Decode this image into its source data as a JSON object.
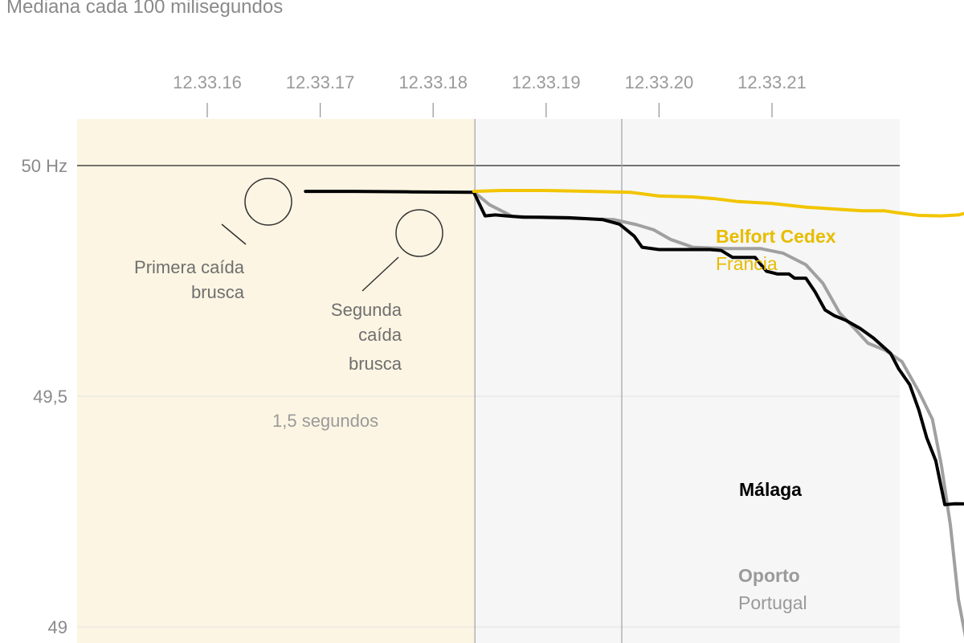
{
  "subtitle": "Mediana cada 100 milisegundos",
  "chart_data": {
    "type": "line",
    "x_ticks": [
      "12.33.16",
      "12.33.17",
      "12.33.18",
      "12.33.19",
      "12.33.20",
      "12.33.21"
    ],
    "y_ticks": [
      {
        "value": 50,
        "label": "50 Hz"
      },
      {
        "value": 49.5,
        "label": "49,5"
      },
      {
        "value": 49,
        "label": "49"
      }
    ],
    "xlim": [
      16.73,
      23.99
    ],
    "ylim": [
      48.97,
      50.1
    ],
    "shaded_region": [
      16.73,
      18.37
    ],
    "markers": [
      18.37,
      19.67
    ],
    "colors": {
      "malaga": "#000000",
      "oporto": "#a0a0a0",
      "belfort": "#f2c500",
      "shade_pre": "#fcf5e3",
      "shade_post": "#f5f6f5"
    },
    "series": [
      {
        "key": "oporto",
        "name": "Oporto",
        "sub": "Portugal",
        "values": [
          [
            18.36,
            49.943
          ],
          [
            18.5,
            49.915
          ],
          [
            18.7,
            49.89
          ],
          [
            19.0,
            49.887
          ],
          [
            19.3,
            49.885
          ],
          [
            19.6,
            49.883
          ],
          [
            19.8,
            49.872
          ],
          [
            19.95,
            49.861
          ],
          [
            20.1,
            49.84
          ],
          [
            20.3,
            49.823
          ],
          [
            20.6,
            49.82
          ],
          [
            20.9,
            49.82
          ],
          [
            21.1,
            49.81
          ],
          [
            21.3,
            49.785
          ],
          [
            21.45,
            49.745
          ],
          [
            21.6,
            49.68
          ],
          [
            21.7,
            49.655
          ],
          [
            21.85,
            49.615
          ],
          [
            22.0,
            49.6
          ],
          [
            22.15,
            49.575
          ],
          [
            22.3,
            49.51
          ],
          [
            22.42,
            49.45
          ],
          [
            22.5,
            49.35
          ],
          [
            22.58,
            49.22
          ],
          [
            22.65,
            49.06
          ],
          [
            22.72,
            48.97
          ]
        ]
      },
      {
        "key": "malaga",
        "name": "Málaga",
        "sub": "",
        "values": [
          [
            16.87,
            49.944
          ],
          [
            17.3,
            49.944
          ],
          [
            17.8,
            49.943
          ],
          [
            18.36,
            49.942
          ],
          [
            18.46,
            49.891
          ],
          [
            18.55,
            49.893
          ],
          [
            18.65,
            49.891
          ],
          [
            18.8,
            49.888
          ],
          [
            18.95,
            49.888
          ],
          [
            19.2,
            49.887
          ],
          [
            19.35,
            49.885
          ],
          [
            19.5,
            49.883
          ],
          [
            19.65,
            49.873
          ],
          [
            19.78,
            49.847
          ],
          [
            19.85,
            49.823
          ],
          [
            20.0,
            49.818
          ],
          [
            20.15,
            49.818
          ],
          [
            20.3,
            49.818
          ],
          [
            20.45,
            49.818
          ],
          [
            20.55,
            49.816
          ],
          [
            20.65,
            49.801
          ],
          [
            20.85,
            49.801
          ],
          [
            20.95,
            49.771
          ],
          [
            21.05,
            49.765
          ],
          [
            21.15,
            49.765
          ],
          [
            21.2,
            49.756
          ],
          [
            21.3,
            49.756
          ],
          [
            21.38,
            49.727
          ],
          [
            21.47,
            49.687
          ],
          [
            21.55,
            49.675
          ],
          [
            21.65,
            49.665
          ],
          [
            21.78,
            49.647
          ],
          [
            21.9,
            49.626
          ],
          [
            22.05,
            49.593
          ],
          [
            22.12,
            49.56
          ],
          [
            22.22,
            49.525
          ],
          [
            22.3,
            49.47
          ],
          [
            22.37,
            49.41
          ],
          [
            22.45,
            49.36
          ],
          [
            22.53,
            49.265
          ],
          [
            22.62,
            49.267
          ],
          [
            23.0,
            49.266
          ],
          [
            23.5,
            49.265
          ],
          [
            23.9,
            49.264
          ]
        ]
      },
      {
        "key": "belfort",
        "name": "Belfort Cedex",
        "sub": "Francia",
        "values": [
          [
            18.36,
            49.944
          ],
          [
            18.6,
            49.946
          ],
          [
            19.0,
            49.946
          ],
          [
            19.4,
            49.944
          ],
          [
            19.75,
            49.942
          ],
          [
            20.0,
            49.934
          ],
          [
            20.3,
            49.932
          ],
          [
            20.5,
            49.928
          ],
          [
            20.7,
            49.922
          ],
          [
            21.0,
            49.918
          ],
          [
            21.3,
            49.91
          ],
          [
            21.6,
            49.905
          ],
          [
            21.8,
            49.902
          ],
          [
            22.0,
            49.902
          ],
          [
            22.1,
            49.898
          ],
          [
            22.3,
            49.892
          ],
          [
            22.5,
            49.891
          ],
          [
            22.65,
            49.893
          ],
          [
            22.8,
            49.902
          ],
          [
            22.9,
            49.91
          ],
          [
            23.0,
            49.92
          ],
          [
            23.1,
            49.922
          ],
          [
            23.2,
            49.933
          ],
          [
            23.3,
            49.934
          ],
          [
            23.4,
            49.93
          ],
          [
            23.5,
            49.915
          ],
          [
            23.6,
            49.904
          ],
          [
            23.75,
            49.9
          ],
          [
            23.9,
            49.9
          ],
          [
            24.0,
            49.9
          ],
          [
            24.15,
            49.904
          ]
        ]
      }
    ],
    "annotations": [
      {
        "lines": [
          "Primera caída",
          "brusca"
        ]
      },
      {
        "lines": [
          "Segunda",
          "caída",
          "brusca"
        ]
      },
      {
        "text": "1,5 segundos"
      }
    ]
  }
}
